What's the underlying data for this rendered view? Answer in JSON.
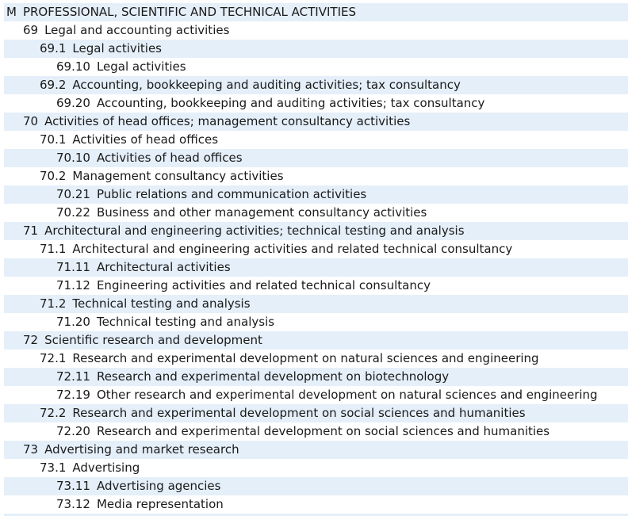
{
  "section": {
    "code": "M",
    "label": "PROFESSIONAL, SCIENTIFIC AND TECHNICAL ACTIVITIES"
  },
  "rows": [
    {
      "code": "69",
      "label": "Legal and accounting activities"
    },
    {
      "code": "69.1",
      "label": "Legal activities"
    },
    {
      "code": "69.10",
      "label": "Legal activities"
    },
    {
      "code": "69.2",
      "label": "Accounting, bookkeeping and auditing activities; tax consultancy"
    },
    {
      "code": "69.20",
      "label": "Accounting, bookkeeping and auditing activities; tax consultancy"
    },
    {
      "code": "70",
      "label": "Activities of head offices; management consultancy activities"
    },
    {
      "code": "70.1",
      "label": "Activities of head offices"
    },
    {
      "code": "70.10",
      "label": "Activities of head offices"
    },
    {
      "code": "70.2",
      "label": "Management consultancy activities"
    },
    {
      "code": "70.21",
      "label": "Public relations and communication activities"
    },
    {
      "code": "70.22",
      "label": "Business and other management consultancy activities"
    },
    {
      "code": "71",
      "label": "Architectural and engineering activities; technical testing and analysis"
    },
    {
      "code": "71.1",
      "label": "Architectural and engineering activities and related technical consultancy"
    },
    {
      "code": "71.11",
      "label": "Architectural activities"
    },
    {
      "code": "71.12",
      "label": "Engineering activities and related technical consultancy"
    },
    {
      "code": "71.2",
      "label": "Technical testing and analysis"
    },
    {
      "code": "71.20",
      "label": "Technical testing and analysis"
    },
    {
      "code": "72",
      "label": "Scientific research and development"
    },
    {
      "code": "72.1",
      "label": "Research and experimental development on natural sciences and engineering"
    },
    {
      "code": "72.11",
      "label": "Research and experimental development on biotechnology"
    },
    {
      "code": "72.19",
      "label": "Other research and experimental development on natural sciences and engineering"
    },
    {
      "code": "72.2",
      "label": "Research and experimental development on social sciences and humanities"
    },
    {
      "code": "72.20",
      "label": "Research and experimental development on social sciences and humanities"
    },
    {
      "code": "73",
      "label": "Advertising and market research"
    },
    {
      "code": "73.1",
      "label": "Advertising"
    },
    {
      "code": "73.11",
      "label": "Advertising agencies"
    },
    {
      "code": "73.12",
      "label": "Media representation"
    }
  ]
}
